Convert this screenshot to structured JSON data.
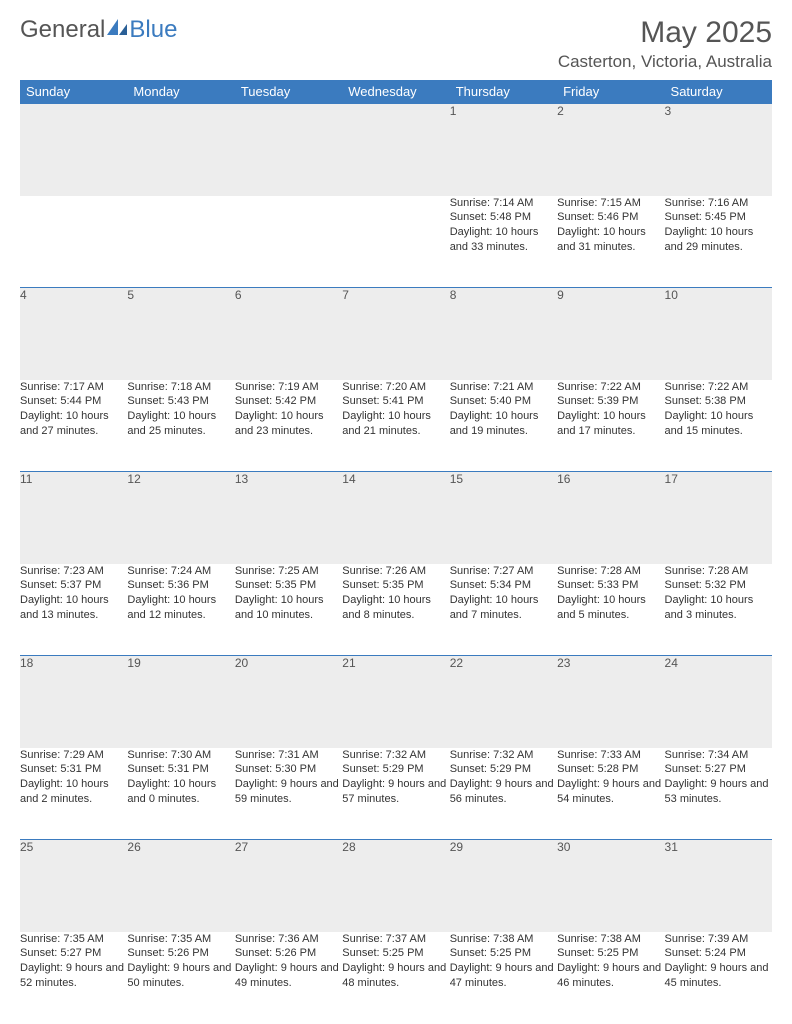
{
  "logo": {
    "text1": "General",
    "text2": "Blue"
  },
  "title": "May 2025",
  "location": "Casterton, Victoria, Australia",
  "colors": {
    "header_bg": "#3b7bbf",
    "header_text": "#ffffff",
    "daynum_bg": "#ededed",
    "row_divider": "#3b7bbf",
    "body_text": "#333333",
    "title_text": "#555555"
  },
  "day_headers": [
    "Sunday",
    "Monday",
    "Tuesday",
    "Wednesday",
    "Thursday",
    "Friday",
    "Saturday"
  ],
  "weeks": [
    [
      null,
      null,
      null,
      null,
      {
        "n": "1",
        "sr": "7:14 AM",
        "ss": "5:48 PM",
        "dl": "10 hours and 33 minutes."
      },
      {
        "n": "2",
        "sr": "7:15 AM",
        "ss": "5:46 PM",
        "dl": "10 hours and 31 minutes."
      },
      {
        "n": "3",
        "sr": "7:16 AM",
        "ss": "5:45 PM",
        "dl": "10 hours and 29 minutes."
      }
    ],
    [
      {
        "n": "4",
        "sr": "7:17 AM",
        "ss": "5:44 PM",
        "dl": "10 hours and 27 minutes."
      },
      {
        "n": "5",
        "sr": "7:18 AM",
        "ss": "5:43 PM",
        "dl": "10 hours and 25 minutes."
      },
      {
        "n": "6",
        "sr": "7:19 AM",
        "ss": "5:42 PM",
        "dl": "10 hours and 23 minutes."
      },
      {
        "n": "7",
        "sr": "7:20 AM",
        "ss": "5:41 PM",
        "dl": "10 hours and 21 minutes."
      },
      {
        "n": "8",
        "sr": "7:21 AM",
        "ss": "5:40 PM",
        "dl": "10 hours and 19 minutes."
      },
      {
        "n": "9",
        "sr": "7:22 AM",
        "ss": "5:39 PM",
        "dl": "10 hours and 17 minutes."
      },
      {
        "n": "10",
        "sr": "7:22 AM",
        "ss": "5:38 PM",
        "dl": "10 hours and 15 minutes."
      }
    ],
    [
      {
        "n": "11",
        "sr": "7:23 AM",
        "ss": "5:37 PM",
        "dl": "10 hours and 13 minutes."
      },
      {
        "n": "12",
        "sr": "7:24 AM",
        "ss": "5:36 PM",
        "dl": "10 hours and 12 minutes."
      },
      {
        "n": "13",
        "sr": "7:25 AM",
        "ss": "5:35 PM",
        "dl": "10 hours and 10 minutes."
      },
      {
        "n": "14",
        "sr": "7:26 AM",
        "ss": "5:35 PM",
        "dl": "10 hours and 8 minutes."
      },
      {
        "n": "15",
        "sr": "7:27 AM",
        "ss": "5:34 PM",
        "dl": "10 hours and 7 minutes."
      },
      {
        "n": "16",
        "sr": "7:28 AM",
        "ss": "5:33 PM",
        "dl": "10 hours and 5 minutes."
      },
      {
        "n": "17",
        "sr": "7:28 AM",
        "ss": "5:32 PM",
        "dl": "10 hours and 3 minutes."
      }
    ],
    [
      {
        "n": "18",
        "sr": "7:29 AM",
        "ss": "5:31 PM",
        "dl": "10 hours and 2 minutes."
      },
      {
        "n": "19",
        "sr": "7:30 AM",
        "ss": "5:31 PM",
        "dl": "10 hours and 0 minutes."
      },
      {
        "n": "20",
        "sr": "7:31 AM",
        "ss": "5:30 PM",
        "dl": "9 hours and 59 minutes."
      },
      {
        "n": "21",
        "sr": "7:32 AM",
        "ss": "5:29 PM",
        "dl": "9 hours and 57 minutes."
      },
      {
        "n": "22",
        "sr": "7:32 AM",
        "ss": "5:29 PM",
        "dl": "9 hours and 56 minutes."
      },
      {
        "n": "23",
        "sr": "7:33 AM",
        "ss": "5:28 PM",
        "dl": "9 hours and 54 minutes."
      },
      {
        "n": "24",
        "sr": "7:34 AM",
        "ss": "5:27 PM",
        "dl": "9 hours and 53 minutes."
      }
    ],
    [
      {
        "n": "25",
        "sr": "7:35 AM",
        "ss": "5:27 PM",
        "dl": "9 hours and 52 minutes."
      },
      {
        "n": "26",
        "sr": "7:35 AM",
        "ss": "5:26 PM",
        "dl": "9 hours and 50 minutes."
      },
      {
        "n": "27",
        "sr": "7:36 AM",
        "ss": "5:26 PM",
        "dl": "9 hours and 49 minutes."
      },
      {
        "n": "28",
        "sr": "7:37 AM",
        "ss": "5:25 PM",
        "dl": "9 hours and 48 minutes."
      },
      {
        "n": "29",
        "sr": "7:38 AM",
        "ss": "5:25 PM",
        "dl": "9 hours and 47 minutes."
      },
      {
        "n": "30",
        "sr": "7:38 AM",
        "ss": "5:25 PM",
        "dl": "9 hours and 46 minutes."
      },
      {
        "n": "31",
        "sr": "7:39 AM",
        "ss": "5:24 PM",
        "dl": "9 hours and 45 minutes."
      }
    ]
  ],
  "labels": {
    "sunrise": "Sunrise: ",
    "sunset": "Sunset: ",
    "daylight": "Daylight: "
  }
}
